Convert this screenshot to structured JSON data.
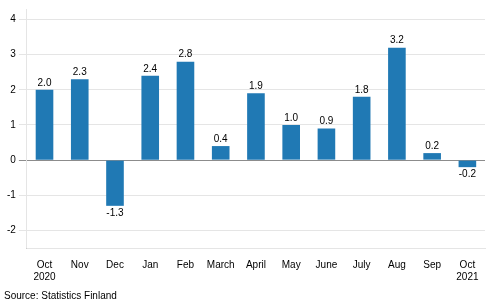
{
  "chart_data": {
    "type": "bar",
    "categories": [
      "Oct\n2020",
      "Nov",
      "Dec",
      "Jan",
      "Feb",
      "March",
      "April",
      "May",
      "June",
      "July",
      "Aug",
      "Sep",
      "Oct\n2021"
    ],
    "values": [
      2.0,
      2.3,
      -1.3,
      2.4,
      2.8,
      0.4,
      1.9,
      1.0,
      0.9,
      1.8,
      3.2,
      0.2,
      -0.2
    ],
    "value_labels": [
      "2.0",
      "2.3",
      "-1.3",
      "2.4",
      "2.8",
      "0.4",
      "1.9",
      "1.0",
      "0.9",
      "1.8",
      "3.2",
      "0.2",
      "-0.2"
    ],
    "data_labels": true,
    "color": "#2079b4",
    "ylim": [
      -2.5,
      4.3
    ],
    "yticks": [
      -2,
      -1,
      0,
      1,
      2,
      3,
      4
    ],
    "grid": true,
    "annotations": [
      "Source: Statistics Finland"
    ]
  }
}
